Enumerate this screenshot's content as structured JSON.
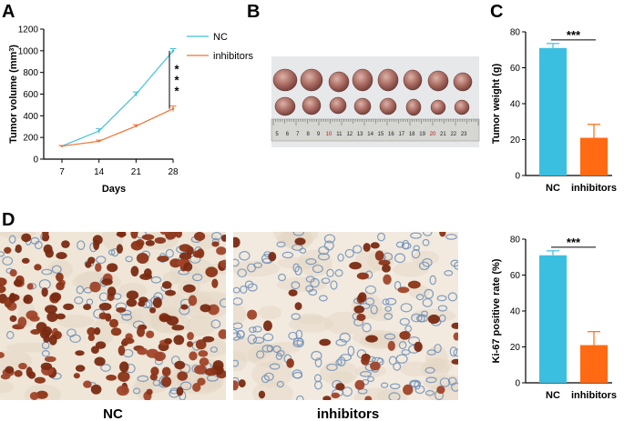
{
  "panels": {
    "a": "A",
    "b": "B",
    "c": "C",
    "d": "D"
  },
  "photo_b": {
    "ruler_numbers": [
      "5",
      "6",
      "7",
      "8",
      "9",
      "10",
      "11",
      "12",
      "13",
      "14",
      "15",
      "16",
      "17",
      "18",
      "19",
      "20",
      "21",
      "22",
      "23"
    ],
    "ruler_red_numbers": [
      "10",
      "20"
    ]
  },
  "micrographs": {
    "left_label": "NC",
    "right_label": "inhibitors"
  },
  "colors": {
    "nc": "#3fc0e0",
    "inhibitors": "#f07030",
    "bar_nc": "#3bbfe0",
    "bar_inhibitors": "#ff6a13",
    "nuclei_brown": "#7a2a12",
    "nuclei_blue": "#6f8fb8",
    "tissue_bg": "#efe6d8"
  },
  "chart_data": [
    {
      "type": "line",
      "panel": "A",
      "xlabel": "Days",
      "ylabel": "Tumor volume (mm³)",
      "ylabel_parts": {
        "main": "Tumor volume (mm",
        "sup": "3",
        "end": ")"
      },
      "x": [
        7,
        14,
        21,
        28
      ],
      "xlim": [
        7,
        28
      ],
      "ylim": [
        0,
        1200
      ],
      "yticks": [
        0,
        200,
        400,
        600,
        800,
        1000,
        1200
      ],
      "series": [
        {
          "name": "NC",
          "values": [
            120,
            260,
            600,
            1000
          ],
          "errors": [
            5,
            20,
            20,
            20
          ]
        },
        {
          "name": "inhibitors",
          "values": [
            120,
            165,
            305,
            465
          ],
          "errors": [
            5,
            10,
            12,
            25
          ]
        }
      ],
      "significance": "***",
      "legend": "top-right"
    },
    {
      "type": "bar",
      "panel": "C",
      "categories": [
        "NC",
        "inhibitors"
      ],
      "values": [
        71,
        21
      ],
      "errors": [
        2.5,
        7.5
      ],
      "ylabel": "Tumor weight (g)",
      "ylim": [
        0,
        80
      ],
      "yticks": [
        0,
        20,
        40,
        60,
        80
      ],
      "significance": "***"
    },
    {
      "type": "bar",
      "panel": "D",
      "categories": [
        "NC",
        "inhibitors"
      ],
      "values": [
        71,
        21
      ],
      "errors": [
        2.5,
        7.5
      ],
      "ylabel": "Ki-67 positive rate (%)",
      "ylim": [
        0,
        80
      ],
      "yticks": [
        0,
        20,
        40,
        60,
        80
      ],
      "significance": "***"
    }
  ]
}
